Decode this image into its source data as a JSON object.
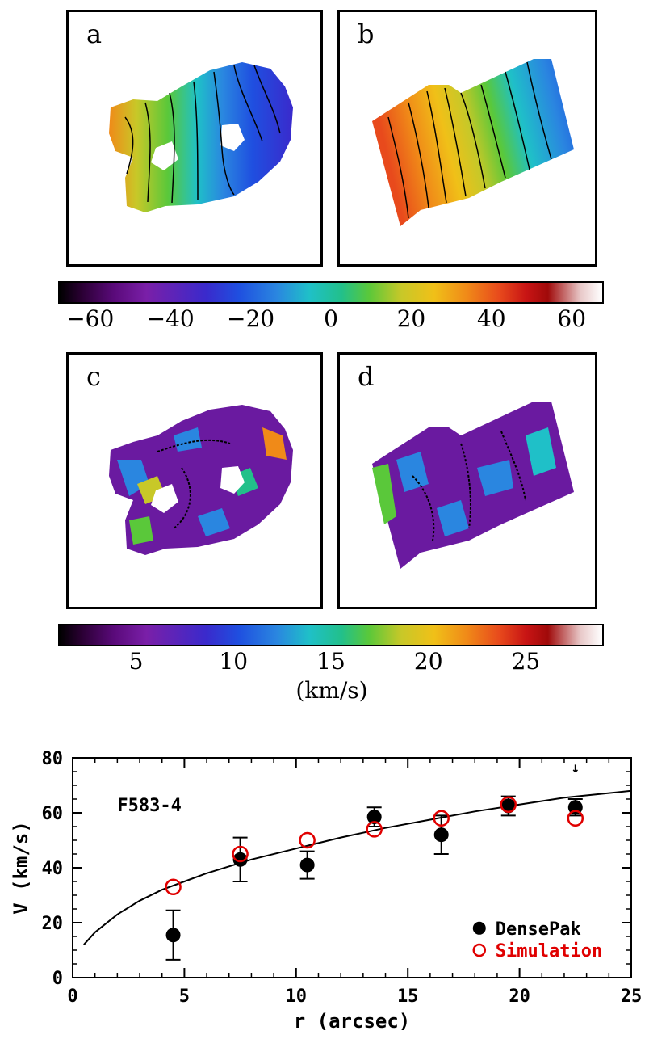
{
  "panels": {
    "a": "a",
    "b": "b",
    "c": "c",
    "d": "d"
  },
  "velocity_colorbar": {
    "ticks": [
      "−60",
      "−40",
      "−20",
      "0",
      "20",
      "40",
      "60"
    ],
    "tick_values": [
      -60,
      -40,
      -20,
      0,
      20,
      40,
      60
    ],
    "range": [
      -68,
      68
    ]
  },
  "dispersion_colorbar": {
    "ticks": [
      "5",
      "10",
      "15",
      "20",
      "25"
    ],
    "tick_values": [
      5,
      10,
      15,
      20,
      25
    ],
    "range": [
      1,
      29
    ],
    "unit": "(km/s)"
  },
  "colors": {
    "densepak": "#000000",
    "simulation": "#e00000",
    "curve": "#000000"
  },
  "chart_data": {
    "type": "scatter",
    "title": "F583-4",
    "xlabel": "r (arcsec)",
    "ylabel": "V (km/s)",
    "xlim": [
      0,
      25
    ],
    "ylim": [
      0,
      80
    ],
    "xticks": [
      0,
      5,
      10,
      15,
      20,
      25
    ],
    "yticks": [
      0,
      20,
      40,
      60,
      80
    ],
    "legend_position": "bottom-right",
    "series": [
      {
        "name": "DensePak",
        "marker": "filled-circle",
        "x": [
          4.5,
          7.5,
          10.5,
          13.5,
          16.5,
          19.5,
          22.5
        ],
        "y": [
          15.5,
          43,
          41,
          58.5,
          52,
          62.5,
          62
        ],
        "err": [
          9,
          8,
          5,
          3.5,
          7,
          3.5,
          3
        ]
      },
      {
        "name": "Simulation",
        "marker": "open-circle",
        "x": [
          4.5,
          7.5,
          10.5,
          13.5,
          16.5,
          19.5,
          22.5
        ],
        "y": [
          33,
          45,
          50,
          54,
          58,
          63,
          58
        ]
      }
    ],
    "model_curve": {
      "name": "fit",
      "r": [
        0.5,
        1,
        2,
        3,
        4,
        5,
        6,
        8,
        10,
        12,
        14,
        16,
        18,
        20,
        22,
        25
      ],
      "v": [
        12,
        16.5,
        23,
        28,
        32,
        35,
        38,
        43,
        47,
        51,
        54.5,
        57.5,
        60.5,
        63,
        65.5,
        68
      ]
    },
    "annotations": [
      "↓"
    ]
  }
}
